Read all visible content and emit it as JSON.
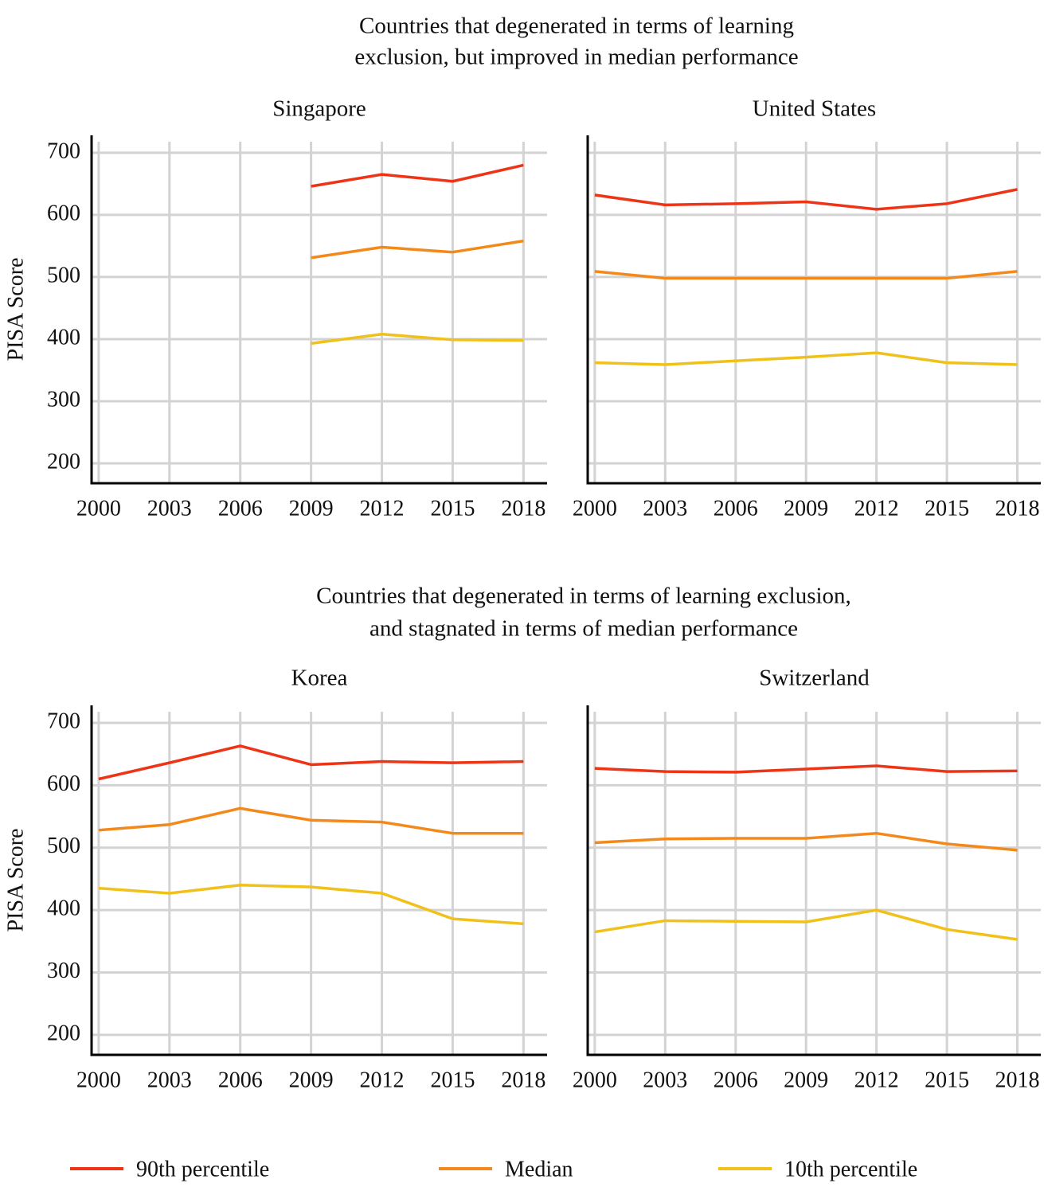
{
  "headings": [
    [
      "Countries that degenerated in terms of learning",
      "exclusion, but improved in median performance"
    ],
    [
      "Countries that degenerated in terms of learning exclusion,",
      "and stagnated in terms of median performance"
    ]
  ],
  "chart_data": [
    {
      "type": "line",
      "title": "Singapore",
      "ylabel": "PISA Score",
      "show_ytick_labels": true,
      "x": [
        2000,
        2003,
        2006,
        2009,
        2012,
        2015,
        2018
      ],
      "xticks": [
        2000,
        2003,
        2006,
        2009,
        2012,
        2015,
        2018
      ],
      "xlim": [
        1999.7,
        2019
      ],
      "ylim": [
        168,
        728
      ],
      "yticks": [
        200,
        300,
        400,
        500,
        600,
        700
      ],
      "grid": true,
      "series": [
        {
          "name": "90th percentile",
          "color": "#ee3417",
          "values": [
            null,
            null,
            null,
            646,
            665,
            654,
            680
          ]
        },
        {
          "name": "Median",
          "color": "#f3891b",
          "values": [
            null,
            null,
            null,
            531,
            548,
            540,
            558
          ]
        },
        {
          "name": "10th percentile",
          "color": "#efc11a",
          "values": [
            null,
            null,
            null,
            393,
            408,
            399,
            398
          ]
        }
      ]
    },
    {
      "type": "line",
      "title": "United States",
      "show_ytick_labels": false,
      "x": [
        2000,
        2003,
        2006,
        2009,
        2012,
        2015,
        2018
      ],
      "xticks": [
        2000,
        2003,
        2006,
        2009,
        2012,
        2015,
        2018
      ],
      "xlim": [
        1999.7,
        2019
      ],
      "ylim": [
        168,
        728
      ],
      "yticks": [
        200,
        300,
        400,
        500,
        600,
        700
      ],
      "grid": true,
      "series": [
        {
          "name": "90th percentile",
          "color": "#ee3417",
          "values": [
            632,
            616,
            618,
            621,
            609,
            618,
            641
          ]
        },
        {
          "name": "Median",
          "color": "#f3891b",
          "values": [
            509,
            498,
            498,
            498,
            498,
            498,
            509
          ]
        },
        {
          "name": "10th percentile",
          "color": "#efc11a",
          "values": [
            362,
            359,
            365,
            371,
            378,
            362,
            359
          ]
        }
      ]
    },
    {
      "type": "line",
      "title": "Korea",
      "ylabel": "PISA Score",
      "show_ytick_labels": true,
      "x": [
        2000,
        2003,
        2006,
        2009,
        2012,
        2015,
        2018
      ],
      "xticks": [
        2000,
        2003,
        2006,
        2009,
        2012,
        2015,
        2018
      ],
      "xlim": [
        1999.7,
        2019
      ],
      "ylim": [
        168,
        728
      ],
      "yticks": [
        200,
        300,
        400,
        500,
        600,
        700
      ],
      "grid": true,
      "series": [
        {
          "name": "90th percentile",
          "color": "#ee3417",
          "values": [
            610,
            636,
            663,
            633,
            638,
            636,
            638
          ]
        },
        {
          "name": "Median",
          "color": "#f3891b",
          "values": [
            528,
            537,
            563,
            544,
            541,
            523,
            523
          ]
        },
        {
          "name": "10th percentile",
          "color": "#efc11a",
          "values": [
            435,
            427,
            440,
            437,
            427,
            386,
            378
          ]
        }
      ]
    },
    {
      "type": "line",
      "title": "Switzerland",
      "show_ytick_labels": false,
      "x": [
        2000,
        2003,
        2006,
        2009,
        2012,
        2015,
        2018
      ],
      "xticks": [
        2000,
        2003,
        2006,
        2009,
        2012,
        2015,
        2018
      ],
      "xlim": [
        1999.7,
        2019
      ],
      "ylim": [
        168,
        728
      ],
      "yticks": [
        200,
        300,
        400,
        500,
        600,
        700
      ],
      "grid": true,
      "series": [
        {
          "name": "90th percentile",
          "color": "#ee3417",
          "values": [
            627,
            622,
            621,
            626,
            631,
            622,
            623
          ]
        },
        {
          "name": "Median",
          "color": "#f3891b",
          "values": [
            508,
            514,
            515,
            515,
            523,
            506,
            496
          ]
        },
        {
          "name": "10th percentile",
          "color": "#efc11a",
          "values": [
            365,
            383,
            382,
            381,
            400,
            369,
            353
          ]
        }
      ]
    }
  ]
}
